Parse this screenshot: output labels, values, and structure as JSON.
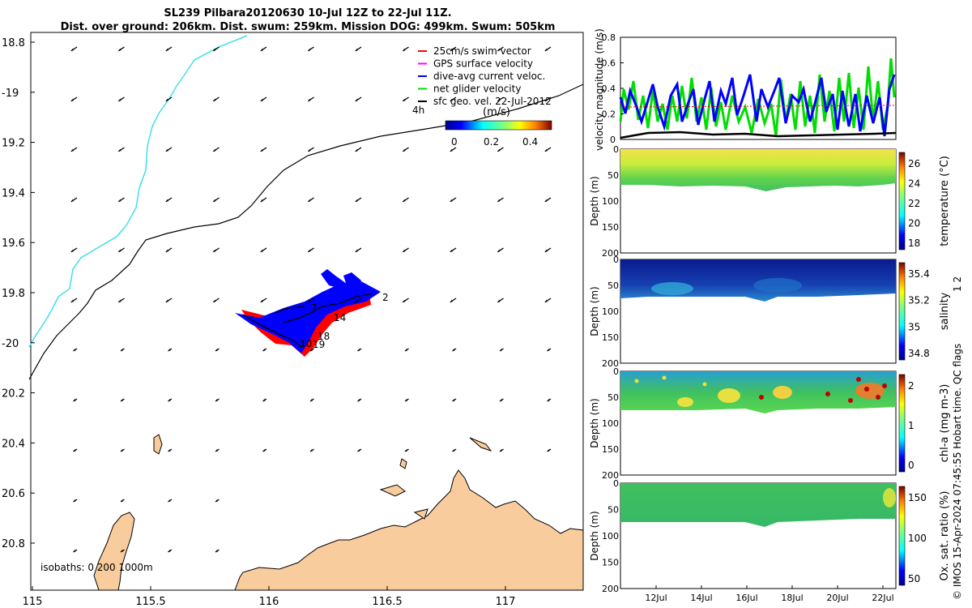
{
  "title": {
    "line1": "SL239 Pilbara20120630 10-Jul 12Z to 22-Jul 11Z.",
    "line2": "Dist. over ground: 206km. Dist. swum: 259km. Mission DOG: 499km. Swum: 505km"
  },
  "map": {
    "lat_ticks": [
      "18.8",
      "-19",
      "19.2",
      "19.4",
      "19.6",
      "19.8",
      "-20",
      "20.2",
      "20.4",
      "20.6",
      "20.8"
    ],
    "lon_ticks": [
      "115",
      "115.5",
      "116",
      "116.5",
      "117"
    ],
    "track_labels": [
      "2",
      "7",
      "14",
      "18",
      "19",
      "10"
    ],
    "isobath_note": "isobaths: 0  200  1000m",
    "land_color": "#f9cc9d"
  },
  "legend": {
    "items": [
      {
        "label": "25cm/s swim vector",
        "color": "#ff0000"
      },
      {
        "label": "GPS surface velocity",
        "color": "#ff00ff"
      },
      {
        "label": "dive-avg current veloc.",
        "color": "#0000ff"
      },
      {
        "label": "net glider velocity",
        "color": "#00dd00"
      },
      {
        "label": "sfc geo. vel. 22-Jul-2012",
        "color": "#000000"
      }
    ],
    "interval_label": "4h",
    "units_label": "(m/s)",
    "colorbar_ticks": [
      "0",
      "0.2",
      "0.4"
    ]
  },
  "velocity_panel": {
    "ylabel": "velocity magnitude (m/s)",
    "y_ticks": [
      "0",
      "0.2",
      "0.4",
      "0.6",
      "0.8"
    ],
    "series_colors": {
      "net": "#00dd00",
      "current": "#0000ff",
      "sfc": "#000000",
      "gps": "#ff0000"
    }
  },
  "sections": [
    {
      "ylabel": "Depth (m)",
      "cblabel": "temperature (°C)",
      "cbticks": [
        "26",
        "24",
        "22",
        "20",
        "18"
      ]
    },
    {
      "ylabel": "Depth (m)",
      "cblabel": "salinity",
      "cbticks": [
        "35.4",
        "35.2",
        "35",
        "34.8"
      ]
    },
    {
      "ylabel": "Depth (m)",
      "cblabel": "chl-a (mg m-3)",
      "cbticks": [
        "2",
        "1",
        "0"
      ]
    },
    {
      "ylabel": "Depth (m)",
      "cblabel": "Ox. sat. ratio (%)",
      "cbticks": [
        "150",
        "100",
        "50"
      ]
    }
  ],
  "depth_ticks": [
    "0",
    "50",
    "100",
    "150",
    "200"
  ],
  "date_ticks": [
    "12Jul",
    "14Jul",
    "16Jul",
    "18Jul",
    "20Jul",
    "22Jul"
  ],
  "qc_flags": "1  2",
  "credit": "© IMOS 15-Apr-2024 07:45:55 Hobart time. QC flags"
}
